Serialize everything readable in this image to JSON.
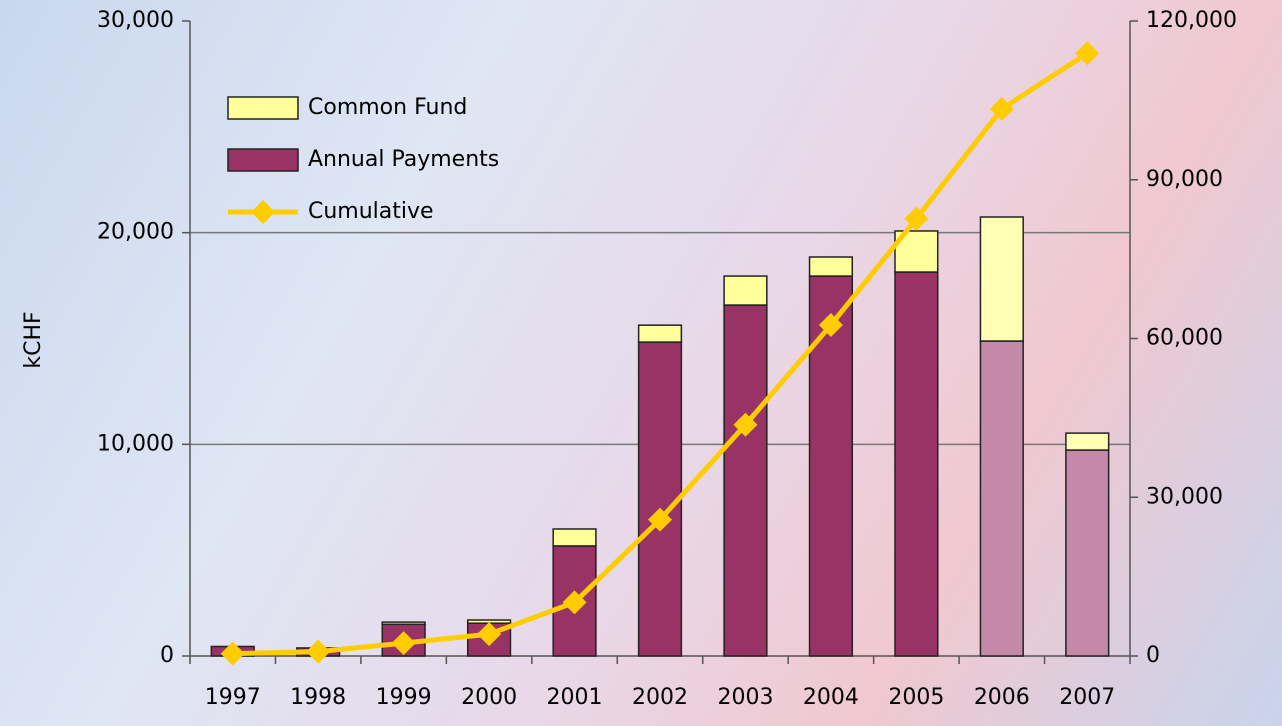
{
  "chart_data": {
    "type": "bar_line",
    "y_label": "kCHF",
    "categories": [
      "1997",
      "1998",
      "1999",
      "2000",
      "2001",
      "2002",
      "2003",
      "2004",
      "2005",
      "2006",
      "2007"
    ],
    "series": [
      {
        "name": "Annual Payments",
        "kind": "bar",
        "color": "#993366",
        "colors": [
          "#993366",
          "#993366",
          "#993366",
          "#993366",
          "#993366",
          "#993366",
          "#993366",
          "#993366",
          "#993366",
          "#c489a8",
          "#c489a8"
        ],
        "values": [
          450,
          380,
          1500,
          1550,
          5200,
          14830,
          16580,
          17950,
          18140,
          14880,
          9730
        ]
      },
      {
        "name": "Common Fund",
        "kind": "bar",
        "color": "#ffff99",
        "colors": [
          "#ffff99",
          "#ffff99",
          "#ffff99",
          "#ffff99",
          "#ffff99",
          "#ffff99",
          "#ffff99",
          "#ffff99",
          "#ffff99",
          "#ffffb3",
          "#ffffb3"
        ],
        "values": [
          0,
          0,
          100,
          150,
          800,
          800,
          1370,
          900,
          1940,
          5860,
          800
        ]
      },
      {
        "name": "Cumulative",
        "kind": "line",
        "axis": "y2",
        "color": "#ffcc00",
        "values": [
          450,
          830,
          2430,
          4130,
          10130,
          25760,
          43710,
          62560,
          82640,
          103380,
          113910
        ]
      }
    ],
    "ylim": [
      0,
      30000
    ],
    "yticks": [
      0,
      {
        "value": 10000,
        "label": "10,000"
      },
      {
        "value": 20000,
        "label": "20,000"
      },
      {
        "value": 30000,
        "label": "30,000"
      }
    ],
    "y2lim": [
      0,
      120000
    ],
    "y2ticks": [
      0,
      {
        "value": 30000,
        "label": "30,000"
      },
      {
        "value": 60000,
        "label": "60,000"
      },
      {
        "value": 90000,
        "label": "90,000"
      },
      {
        "value": 120000,
        "label": "120,000"
      }
    ],
    "grid": true,
    "legend": "upper left"
  }
}
